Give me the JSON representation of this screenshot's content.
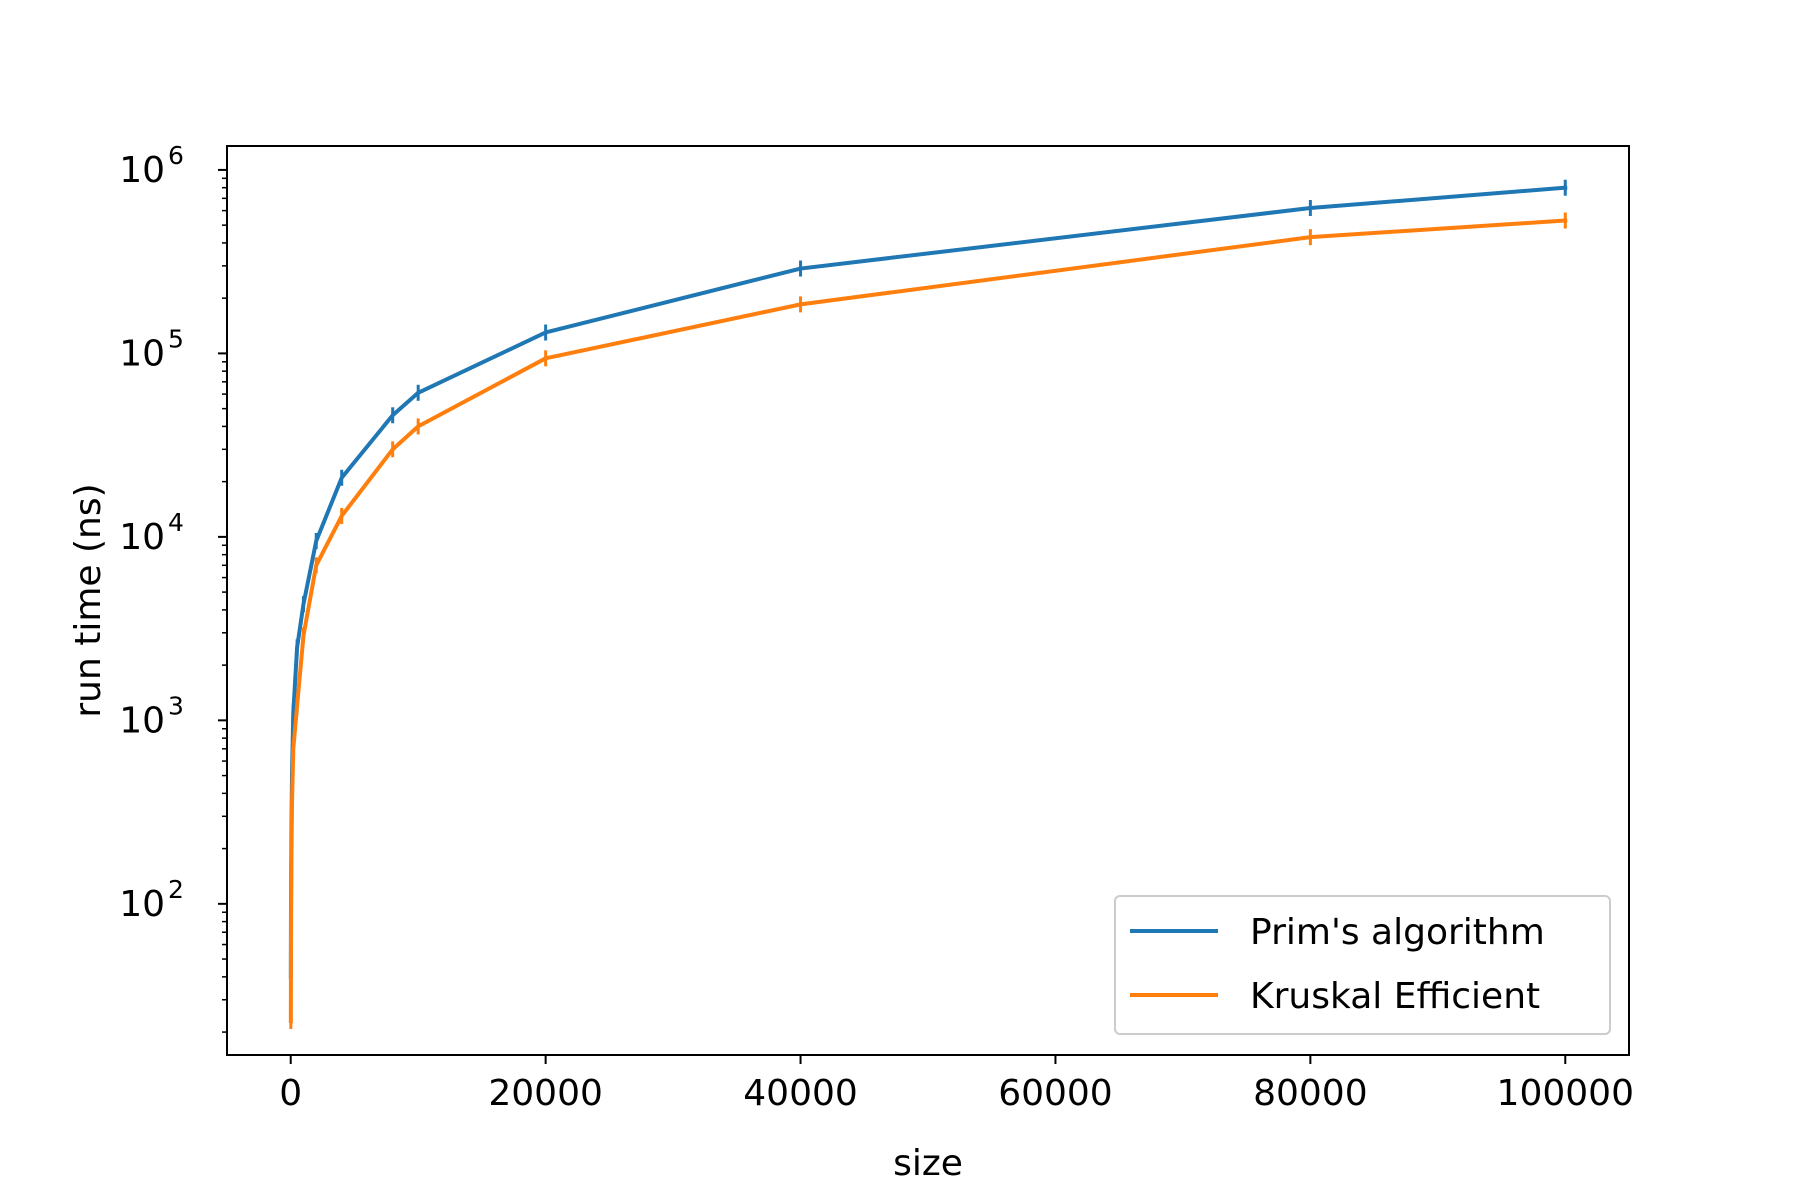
{
  "chart_data": {
    "type": "line",
    "title": "",
    "xlabel": "size",
    "ylabel": "run time (ns)",
    "xlim": [
      -5000,
      105000
    ],
    "ylim": [
      15,
      1350000
    ],
    "yscale": "log",
    "x_ticks": [
      0,
      20000,
      40000,
      60000,
      80000,
      100000
    ],
    "x_tick_labels": [
      "0",
      "20000",
      "40000",
      "60000",
      "80000",
      "100000"
    ],
    "y_ticks": [
      {
        "value": 100,
        "base": "10",
        "exp": "2"
      },
      {
        "value": 1000,
        "base": "10",
        "exp": "3"
      },
      {
        "value": 10000,
        "base": "10",
        "exp": "4"
      },
      {
        "value": 100000,
        "base": "10",
        "exp": "5"
      },
      {
        "value": 1000000,
        "base": "10",
        "exp": "6"
      }
    ],
    "grid": false,
    "legend_position": "lower-right",
    "series": [
      {
        "name": "Prim's algorithm",
        "color": "#1f77b4",
        "x": [
          10,
          20,
          50,
          100,
          200,
          500,
          1000,
          2000,
          4000,
          8000,
          10000,
          20000,
          40000,
          80000,
          100000
        ],
        "y": [
          40,
          95,
          230,
          500,
          1100,
          2500,
          4300,
          9500,
          21000,
          46000,
          61000,
          130000,
          290000,
          620000,
          800000
        ]
      },
      {
        "name": "Kruskal Efficient",
        "color": "#ff7f0e",
        "x": [
          10,
          20,
          50,
          100,
          200,
          500,
          1000,
          2000,
          4000,
          8000,
          10000,
          20000,
          40000,
          80000,
          100000
        ],
        "y": [
          23,
          60,
          160,
          350,
          700,
          1200,
          2900,
          7000,
          13000,
          30000,
          40000,
          94000,
          185000,
          430000,
          530000
        ]
      }
    ]
  }
}
